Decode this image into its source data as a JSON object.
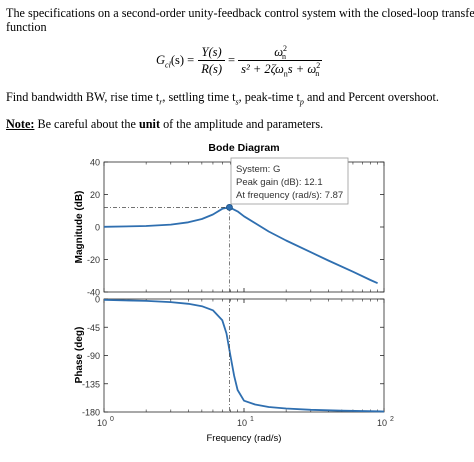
{
  "problem": {
    "line1": "The specifications on a second-order unity-feedback control system with the closed-loop transfer",
    "line2": "function",
    "formula": {
      "lhs_G": "G",
      "lhs_sub": "cl",
      "lhs_arg": "(s) =",
      "frac1_num": "Y(s)",
      "frac1_den": "R(s)",
      "eq2": "=",
      "frac2_num_w": "ω",
      "frac2_num_sub": "n",
      "frac2_num_sup": "2",
      "frac2_den": "s² + 2ζω",
      "frac2_den_sub": "n",
      "frac2_den_rest": "s + ω",
      "frac2_den_sub2": "n",
      "frac2_den_sup2": "2"
    },
    "find_text": "Find bandwidth BW, rise time t",
    "find_r": "r",
    "find_mid1": ", settling time t",
    "find_s": "s",
    "find_mid2": ", peak-time t",
    "find_p": "p",
    "find_end": " and and Percent overshoot.",
    "note_label": "Note:",
    "note_text_a": " Be careful about the ",
    "note_bold": "unit",
    "note_text_b": " of the amplitude and parameters."
  },
  "chart_data": [
    {
      "type": "line",
      "title": "Bode Diagram",
      "panel": "magnitude",
      "ylabel": "Magnitude (dB)",
      "xscale": "log",
      "xlim": [
        1,
        100
      ],
      "ylim": [
        -40,
        40
      ],
      "yticks": [
        "40",
        "20",
        "0",
        "-20",
        "-40"
      ],
      "grid": false,
      "series": [
        {
          "x": [
            1,
            2,
            3,
            4,
            5,
            6,
            7,
            7.87,
            9,
            10,
            15,
            20,
            30,
            40,
            60,
            80,
            90
          ],
          "values": [
            0.1,
            0.6,
            1.5,
            2.9,
            4.9,
            7.7,
            11.2,
            12.1,
            9.6,
            6.6,
            -2.8,
            -8.3,
            -15.5,
            -20.6,
            -27.5,
            -32.6,
            -34.6
          ]
        }
      ],
      "annotation": {
        "line1": "System: G",
        "line2": "Peak gain (dB): 12.1",
        "line3": "At frequency (rad/s): 7.87",
        "peak_x": 7.87,
        "peak_y": 12.1
      }
    },
    {
      "type": "line",
      "panel": "phase",
      "ylabel": "Phase (deg)",
      "xlabel": "Frequency  (rad/s)",
      "xscale": "log",
      "xlim": [
        1,
        100
      ],
      "ylim": [
        -180,
        0
      ],
      "yticks": [
        "0",
        "-45",
        "-90",
        "-135",
        "-180"
      ],
      "xticks": [
        "10",
        "10",
        "10"
      ],
      "xtick_exps": [
        "0",
        "1",
        "2"
      ],
      "grid": false,
      "series": [
        {
          "x": [
            1,
            2,
            3,
            4,
            5,
            6,
            7,
            7.5,
            8,
            8.5,
            9,
            10,
            12,
            15,
            20,
            30,
            50,
            100
          ],
          "values": [
            -1.4,
            -3.0,
            -5.0,
            -7.6,
            -11.5,
            -18.0,
            -34.0,
            -55.0,
            -90.0,
            -122.0,
            -145.0,
            -162.0,
            -168.0,
            -172.0,
            -174.5,
            -176.5,
            -178.0,
            -179.2
          ]
        }
      ]
    }
  ],
  "colors": {
    "line": "#2f6fb0",
    "axis": "#262626",
    "panel_bg": "#ffffff",
    "figure_bg": "#f0f0f0",
    "datatip_bg": "#ffffff",
    "datatip_border": "#999999"
  }
}
